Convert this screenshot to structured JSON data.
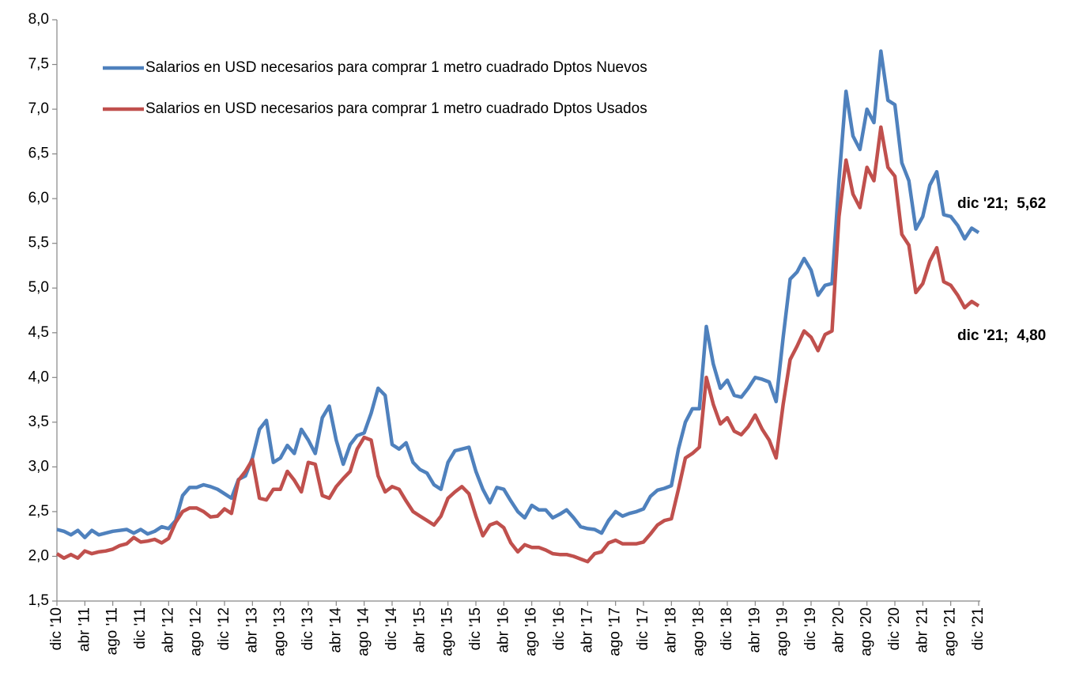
{
  "chart_data": {
    "type": "line",
    "categories": [
      "dic '10",
      null,
      null,
      null,
      "abr '11",
      null,
      null,
      null,
      "ago '11",
      null,
      null,
      null,
      "dic '11",
      null,
      null,
      null,
      "abr '12",
      null,
      null,
      null,
      "ago '12",
      null,
      null,
      null,
      "dic '12",
      null,
      null,
      null,
      "abr '13",
      null,
      null,
      null,
      "ago '13",
      null,
      null,
      null,
      "dic '13",
      null,
      null,
      null,
      "abr '14",
      null,
      null,
      null,
      "ago '14",
      null,
      null,
      null,
      "dic '14",
      null,
      null,
      null,
      "abr '15",
      null,
      null,
      null,
      "ago '15",
      null,
      null,
      null,
      "dic '15",
      null,
      null,
      null,
      "abr '16",
      null,
      null,
      null,
      "ago '16",
      null,
      null,
      null,
      "dic '16",
      null,
      null,
      null,
      "abr '17",
      null,
      null,
      null,
      "ago '17",
      null,
      null,
      null,
      "dic '17",
      null,
      null,
      null,
      "abr '18",
      null,
      null,
      null,
      "ago '18",
      null,
      null,
      null,
      "dic '18",
      null,
      null,
      null,
      "abr '19",
      null,
      null,
      null,
      "ago '19",
      null,
      null,
      null,
      "dic '19",
      null,
      null,
      null,
      "abr '20",
      null,
      null,
      null,
      "ago '20",
      null,
      null,
      null,
      "dic '20",
      null,
      null,
      null,
      "abr '21",
      null,
      null,
      null,
      "ago '21",
      null,
      null,
      null,
      "dic '21"
    ],
    "series": [
      {
        "name": "Salarios en USD necesarios para comprar 1 metro cuadrado Dptos Nuevos",
        "color": "#4f81bd",
        "values": [
          2.3,
          2.28,
          2.24,
          2.29,
          2.21,
          2.29,
          2.24,
          2.26,
          2.28,
          2.29,
          2.3,
          2.26,
          2.3,
          2.25,
          2.28,
          2.33,
          2.31,
          2.4,
          2.68,
          2.77,
          2.77,
          2.8,
          2.78,
          2.75,
          2.7,
          2.65,
          2.86,
          2.9,
          3.1,
          3.42,
          3.52,
          3.05,
          3.1,
          3.24,
          3.15,
          3.42,
          3.3,
          3.15,
          3.55,
          3.68,
          3.3,
          3.03,
          3.25,
          3.35,
          3.38,
          3.6,
          3.88,
          3.8,
          3.25,
          3.2,
          3.27,
          3.05,
          2.97,
          2.93,
          2.8,
          2.75,
          3.05,
          3.18,
          3.2,
          3.22,
          2.95,
          2.75,
          2.6,
          2.77,
          2.75,
          2.62,
          2.5,
          2.43,
          2.57,
          2.52,
          2.52,
          2.43,
          2.47,
          2.52,
          2.43,
          2.33,
          2.31,
          2.3,
          2.26,
          2.4,
          2.5,
          2.45,
          2.48,
          2.5,
          2.53,
          2.67,
          2.74,
          2.76,
          2.79,
          3.2,
          3.5,
          3.65,
          3.65,
          4.57,
          4.15,
          3.88,
          3.97,
          3.8,
          3.78,
          3.88,
          4.0,
          3.98,
          3.95,
          3.73,
          4.45,
          5.1,
          5.18,
          5.33,
          5.2,
          4.92,
          5.03,
          5.05,
          6.2,
          7.2,
          6.7,
          6.55,
          7.0,
          6.85,
          7.65,
          7.1,
          7.05,
          6.4,
          6.2,
          5.66,
          5.8,
          6.15,
          6.3,
          5.82,
          5.8,
          5.7,
          5.55,
          5.67,
          5.62
        ]
      },
      {
        "name": "Salarios en USD necesarios para comprar 1 metro cuadrado Dptos Usados",
        "color": "#c0504d",
        "values": [
          2.03,
          1.98,
          2.02,
          1.98,
          2.06,
          2.03,
          2.05,
          2.06,
          2.08,
          2.12,
          2.14,
          2.21,
          2.16,
          2.17,
          2.19,
          2.15,
          2.2,
          2.38,
          2.5,
          2.54,
          2.54,
          2.5,
          2.44,
          2.45,
          2.53,
          2.48,
          2.85,
          2.95,
          3.08,
          2.65,
          2.63,
          2.75,
          2.75,
          2.95,
          2.85,
          2.72,
          3.05,
          3.03,
          2.68,
          2.65,
          2.78,
          2.87,
          2.95,
          3.2,
          3.33,
          3.3,
          2.9,
          2.72,
          2.78,
          2.75,
          2.62,
          2.5,
          2.45,
          2.4,
          2.35,
          2.45,
          2.65,
          2.72,
          2.78,
          2.7,
          2.45,
          2.23,
          2.35,
          2.38,
          2.32,
          2.15,
          2.05,
          2.13,
          2.1,
          2.1,
          2.07,
          2.03,
          2.02,
          2.02,
          2.0,
          1.97,
          1.94,
          2.03,
          2.05,
          2.15,
          2.18,
          2.14,
          2.14,
          2.14,
          2.16,
          2.25,
          2.35,
          2.4,
          2.42,
          2.75,
          3.1,
          3.15,
          3.22,
          4.0,
          3.7,
          3.48,
          3.55,
          3.4,
          3.36,
          3.45,
          3.58,
          3.42,
          3.3,
          3.1,
          3.7,
          4.2,
          4.35,
          4.52,
          4.45,
          4.3,
          4.48,
          4.52,
          5.8,
          6.43,
          6.05,
          5.9,
          6.35,
          6.2,
          6.8,
          6.35,
          6.25,
          5.6,
          5.48,
          4.95,
          5.05,
          5.3,
          5.45,
          5.07,
          5.03,
          4.92,
          4.78,
          4.85,
          4.8
        ]
      }
    ],
    "ylim": [
      1.5,
      8.0
    ],
    "yticks": [
      {
        "value": 1.5,
        "label": "1,5"
      },
      {
        "value": 2.0,
        "label": "2,0"
      },
      {
        "value": 2.5,
        "label": "2,5"
      },
      {
        "value": 3.0,
        "label": "3,0"
      },
      {
        "value": 3.5,
        "label": "3,5"
      },
      {
        "value": 4.0,
        "label": "4,0"
      },
      {
        "value": 4.5,
        "label": "4,5"
      },
      {
        "value": 5.0,
        "label": "5,0"
      },
      {
        "value": 5.5,
        "label": "5,5"
      },
      {
        "value": 6.0,
        "label": "6,0"
      },
      {
        "value": 6.5,
        "label": "6,5"
      },
      {
        "value": 7.0,
        "label": "7,0"
      },
      {
        "value": 7.5,
        "label": "7,5"
      },
      {
        "value": 8.0,
        "label": "8,0"
      }
    ],
    "grid": false,
    "legend": "top-left",
    "annotations": [
      {
        "text": "dic '21;  5,62",
        "color": "#0070c0"
      },
      {
        "text": "dic '21;  4,80",
        "color": "#c00000"
      }
    ]
  }
}
